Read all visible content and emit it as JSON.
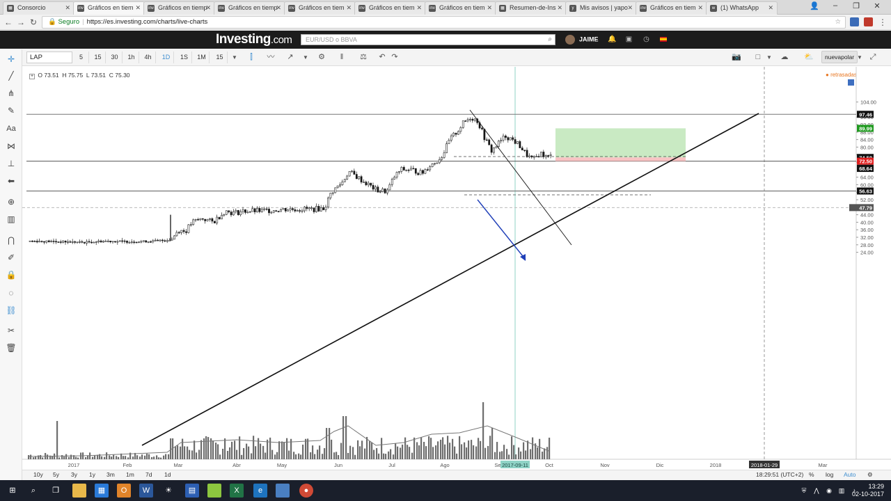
{
  "browser": {
    "tabs": [
      {
        "label": "Consorcio",
        "fav": "▦"
      },
      {
        "label": "Gráficos en tiem",
        "fav": "inv"
      },
      {
        "label": "Gráficos en tiemp",
        "fav": "inv"
      },
      {
        "label": "Gráficos en tiemp",
        "fav": "inv"
      },
      {
        "label": "Gráficos en tiem",
        "fav": "inv"
      },
      {
        "label": "Gráficos en tiem",
        "fav": "inv"
      },
      {
        "label": "Gráficos en tiem",
        "fav": "inv"
      },
      {
        "label": "Resumen-de-Ins",
        "fav": "▦"
      },
      {
        "label": "Mis avisos | yapo",
        "fav": "y"
      },
      {
        "label": "Gráficos en tiem",
        "fav": "inv"
      },
      {
        "label": "(1) WhatsApp",
        "fav": "w"
      }
    ],
    "secure_label": "Seguro",
    "url": "https://es.investing.com/charts/live-charts"
  },
  "site": {
    "logo_main": "Investing",
    "logo_suffix": ".com",
    "search_placeholder": "EUR/USD o BBVA",
    "user_name": "JAIME"
  },
  "toolbar": {
    "symbol": "LAP",
    "intervals": [
      "5",
      "15",
      "30",
      "1h",
      "4h",
      "1D",
      "1S",
      "1M",
      "15"
    ],
    "active_interval": "1D",
    "layout_name": "nuevapolar"
  },
  "ohlc": {
    "o_label": "O",
    "o": "73.51",
    "h_label": "H",
    "h": "75.75",
    "l_label": "L",
    "l": "73.51",
    "c_label": "C",
    "c": "75.30"
  },
  "status_text": "retrasadas",
  "chart_data": {
    "type": "candlestick",
    "y_ticks": [
      "104.00",
      "96.00",
      "92.00",
      "88.00",
      "84.00",
      "80.00",
      "76.00",
      "72.00",
      "64.00",
      "60.00",
      "56.00",
      "52.00",
      "48.00",
      "44.00",
      "40.00",
      "36.00",
      "32.00",
      "28.00",
      "24.00"
    ],
    "x_ticks": [
      "2017",
      "Feb",
      "Mar",
      "Abr",
      "May",
      "Jun",
      "Jul",
      "Ago",
      "Se",
      "Oct",
      "Nov",
      "Dic",
      "2018",
      "Mar"
    ],
    "crosshair_date": "2017-09-11",
    "crosshair_date2": "2018-01-29",
    "price_labels": [
      {
        "value": "97.46",
        "color": "#111111"
      },
      {
        "value": "89.99",
        "color": "#1f9a1f"
      },
      {
        "value": "75.30",
        "color": "#ffffff"
      },
      {
        "value": "74.50",
        "color": "#111111"
      },
      {
        "value": "72.50",
        "color": "#e02020"
      },
      {
        "value": "68.77",
        "color": "#111111"
      },
      {
        "value": "68.64",
        "color": "#111111"
      },
      {
        "value": "56.63",
        "color": "#111111"
      },
      {
        "value": "47.79",
        "color": "#555555"
      }
    ],
    "horizontal_lines": [
      97.46,
      72.5,
      56.63
    ],
    "position_box": {
      "target": 89.99,
      "entry": 74.5,
      "stop": 72.5
    }
  },
  "range": {
    "buttons": [
      "10y",
      "5y",
      "3y",
      "1y",
      "3m",
      "1m",
      "7d",
      "1d"
    ],
    "time": "18:29:51 (UTC+2)",
    "pct": "%",
    "log": "log",
    "auto": "Auto"
  },
  "taskbar": {
    "time": "13:29",
    "date": "02-10-2017"
  }
}
